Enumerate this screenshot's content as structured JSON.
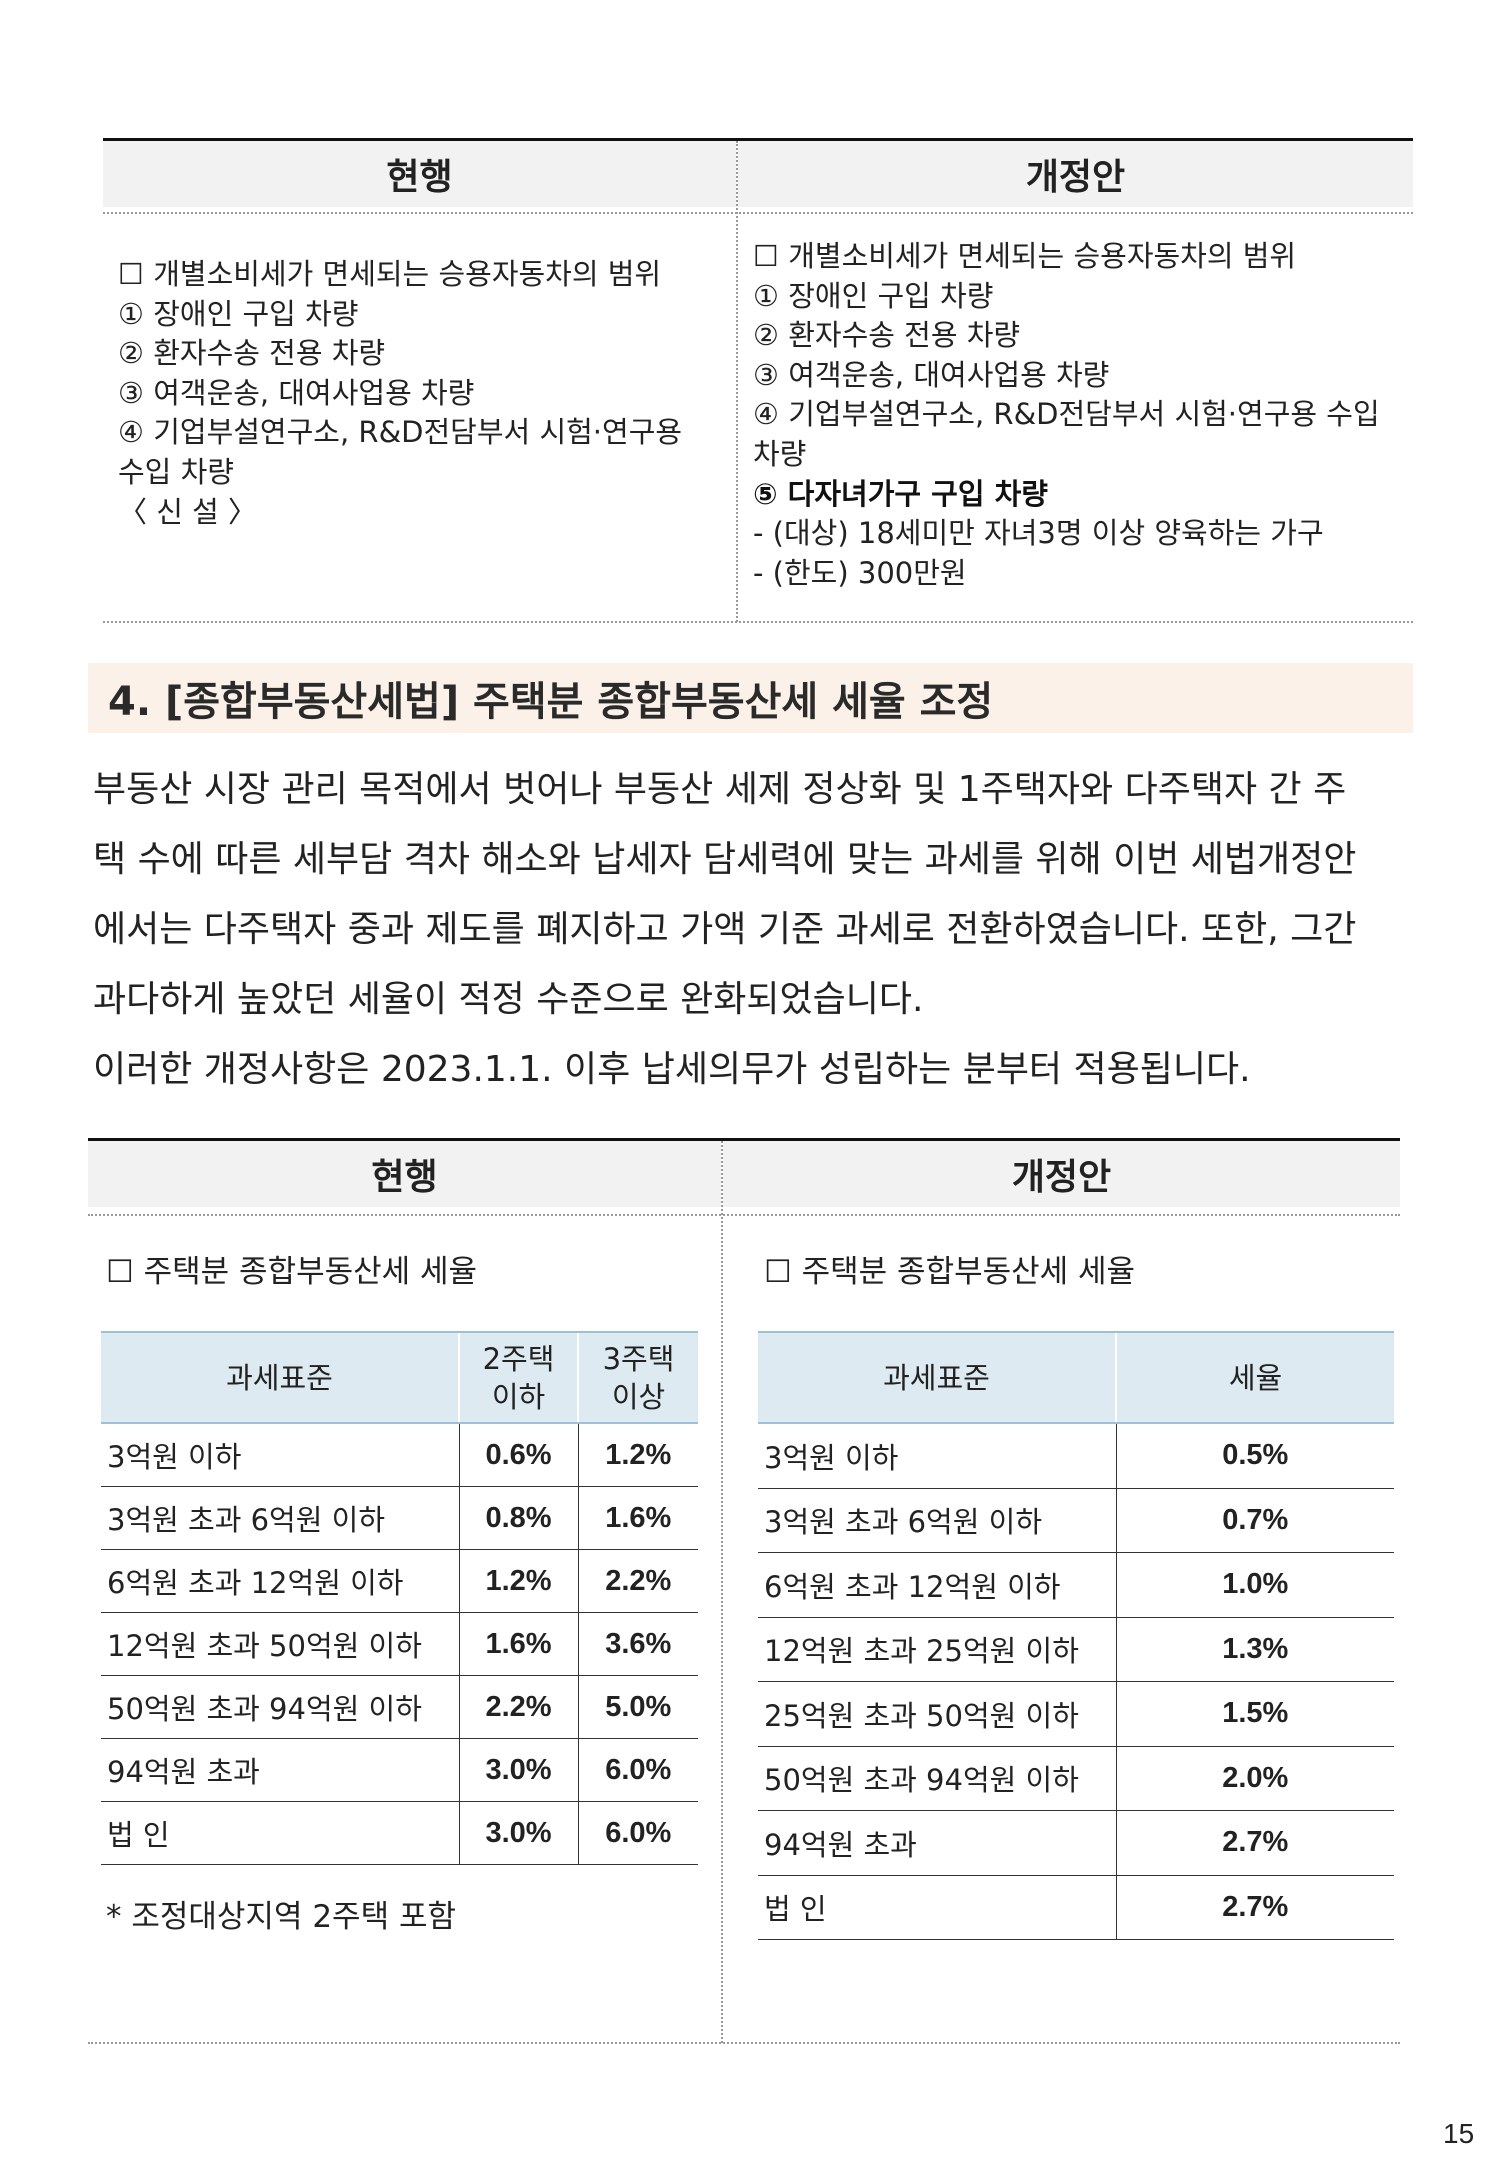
{
  "comparison1": {
    "current_header": "현행",
    "revised_header": "개정안",
    "current_lines": [
      "☐ 개별소비세가 면세되는 승용자동차의 범위",
      " ① 장애인 구입 차량",
      " ② 환자수송 전용 차량",
      " ③ 여객운송, 대여사업용 차량",
      " ④ 기업부설연구소, R&D전담부서 시험·연구용",
      "수입 차량",
      " 〈 신 설 〉"
    ],
    "revised_lines": [
      "☐ 개별소비세가 면세되는 승용자동차의 범위",
      " ① 장애인 구입 차량",
      " ② 환자수송 전용 차량",
      " ③ 여객운송, 대여사업용 차량",
      " ④ 기업부설연구소, R&D전담부서 시험·연구용 수입",
      "차량"
    ],
    "revised_bold_line": " ⑤ 다자녀가구 구입 차량",
    "revised_tail_lines": [
      "- (대상) 18세미만 자녀3명 이상 양육하는 가구",
      "- (한도) 300만원"
    ]
  },
  "section": {
    "title": "4. [종합부동산세법] 주택분 종합부동산세 세율 조정"
  },
  "body": {
    "lines": [
      "부동산 시장 관리 목적에서 벗어나 부동산 세제 정상화 및 1주택자와 다주택자 간 주",
      "택 수에 따른 세부담 격차 해소와 납세자 담세력에 맞는 과세를 위해 이번 세법개정안",
      "에서는 다주택자 중과 제도를 폐지하고 가액 기준 과세로 전환하였습니다. 또한, 그간",
      "과다하게 높았던 세율이 적정 수준으로 완화되었습니다.",
      "이러한 개정사항은 2023.1.1. 이후 납세의무가 성립하는 분부터 적용됩니다."
    ]
  },
  "comparison2": {
    "current_header": "현행",
    "revised_header": "개정안",
    "current_label": "☐ 주택분 종합부동산세 세율",
    "revised_label": "☐ 주택분 종합부동산세 세율",
    "current_table": {
      "headers": [
        "과세표준",
        "2주택\n이하",
        "3주택\n이상"
      ],
      "header_2a": "2주택",
      "header_2b": "이하",
      "header_3a": "3주택",
      "header_3b": "이상",
      "rows": [
        [
          "3억원 이하",
          "0.6%",
          "1.2%"
        ],
        [
          "3억원 초과 6억원 이하",
          "0.8%",
          "1.6%"
        ],
        [
          "6억원 초과 12억원 이하",
          "1.2%",
          "2.2%"
        ],
        [
          "12억원 초과 50억원 이하",
          "1.6%",
          "3.6%"
        ],
        [
          "50억원 초과 94억원 이하",
          "2.2%",
          "5.0%"
        ],
        [
          "94억원 초과",
          "3.0%",
          "6.0%"
        ],
        [
          "법 인",
          "3.0%",
          "6.0%"
        ]
      ]
    },
    "revised_table": {
      "headers": [
        "과세표준",
        "세율"
      ],
      "rows": [
        [
          "3억원 이하",
          "0.5%"
        ],
        [
          "3억원 초과 6억원 이하",
          "0.7%"
        ],
        [
          "6억원 초과 12억원 이하",
          "1.0%"
        ],
        [
          "12억원 초과 25억원 이하",
          "1.3%"
        ],
        [
          "25억원 초과 50억원 이하",
          "1.5%"
        ],
        [
          "50억원 초과 94억원 이하",
          "2.0%"
        ],
        [
          "94억원 초과",
          "2.7%"
        ],
        [
          "법 인",
          "2.7%"
        ]
      ]
    },
    "footnote": "* 조정대상지역 2주택 포함"
  },
  "page_number": "15"
}
